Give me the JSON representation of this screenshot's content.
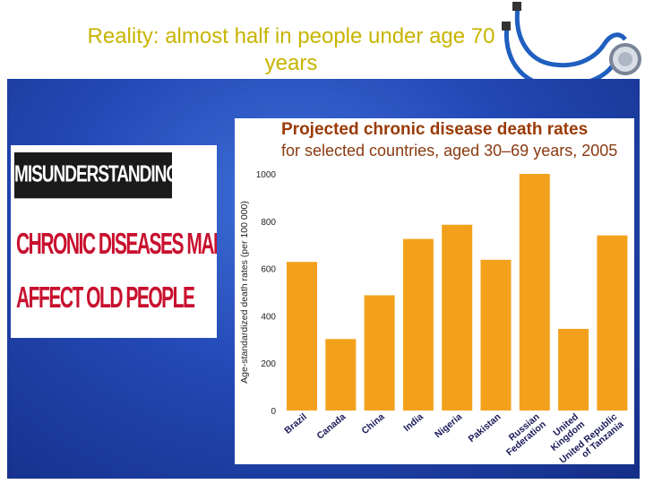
{
  "slide": {
    "title_line1": "Reality: almost half in people under age 70",
    "title_line2": "years"
  },
  "misunderstanding": {
    "header": "MISUNDERSTANDING",
    "line1": "CHRONIC DISEASES MAINLY",
    "line2": "AFFECT OLD PEOPLE"
  },
  "colors": {
    "title": "#c8b400",
    "bar": "#f3a11c",
    "panel": "#2349b6",
    "chart_title": "#9a3a06"
  },
  "chart_data": {
    "type": "bar",
    "title": "Projected chronic disease death rates",
    "subtitle": "for selected countries, aged 30–69 years, 2005",
    "xlabel": "",
    "ylabel": "Age-standardized death rates (per 100 000)",
    "ylim": [
      0,
      1000
    ],
    "yticks": [
      "0",
      "200",
      "400",
      "600",
      "800",
      "1000"
    ],
    "categories": [
      "Brazil",
      "Canada",
      "China",
      "India",
      "Nigeria",
      "Pakistan",
      "Russian Federation",
      "United Kingdom",
      "United Republic of Tanzania"
    ],
    "values": [
      628,
      302,
      487,
      725,
      785,
      637,
      1000,
      345,
      740
    ],
    "grid": false,
    "legend": "none"
  }
}
